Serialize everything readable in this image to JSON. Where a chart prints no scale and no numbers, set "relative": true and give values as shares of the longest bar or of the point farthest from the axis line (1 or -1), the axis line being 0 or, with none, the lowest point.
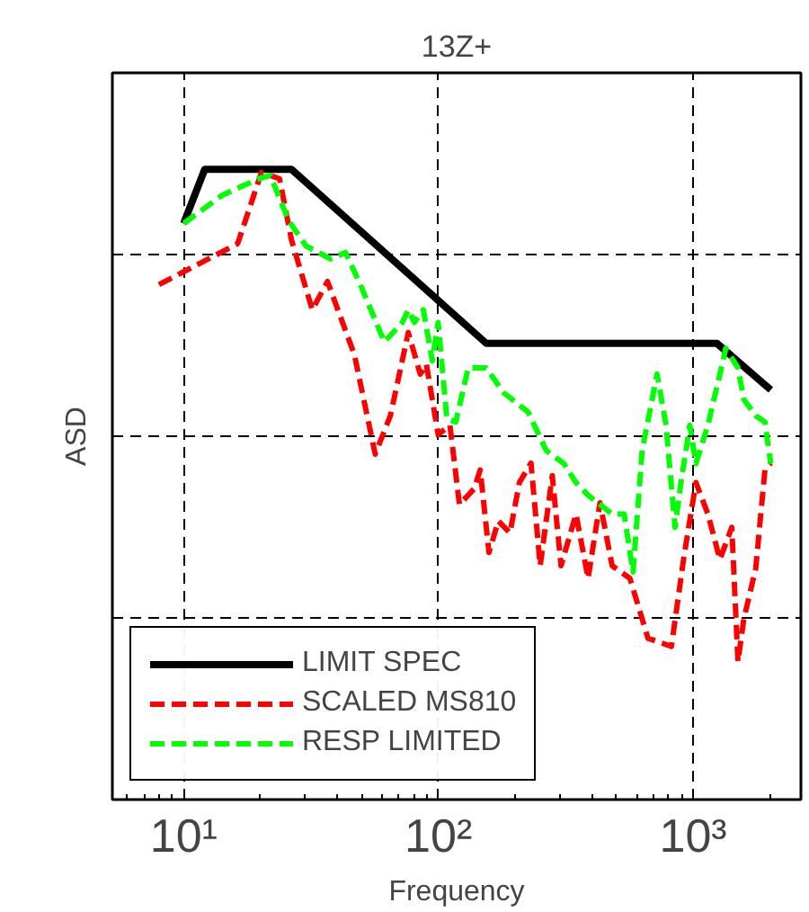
{
  "chart_data": {
    "type": "line",
    "title": "13Z+",
    "xlabel": "Frequency",
    "ylabel": "ASD",
    "relative": true,
    "log": "x",
    "grid": true,
    "legend": "bottom left",
    "xlim": [
      5.25,
      2650
    ],
    "xticks": [
      {
        "value": 10,
        "label": "10¹"
      },
      {
        "value": 100,
        "label": "10²"
      },
      {
        "value": 1000,
        "label": "10³"
      }
    ],
    "series": [
      {
        "name": "LIMIT SPEC",
        "color": "#000000",
        "line_style": "solid",
        "x": [
          10,
          12.1,
          26.5,
          154,
          1239,
          2018
        ],
        "values": [
          0.914,
          1.0,
          1.0,
          0.724,
          0.724,
          0.65
        ]
      },
      {
        "name": "SCALED MS810",
        "color": "#ff0000",
        "line_style": "dashed",
        "x": [
          8.0,
          16.3,
          20.2,
          23.8,
          26.5,
          32.0,
          36.7,
          46.8,
          56.5,
          64.8,
          76.2,
          84.9,
          89.7,
          99.8,
          111,
          121,
          138,
          146,
          158,
          172,
          191,
          208,
          231,
          251,
          280,
          303,
          347,
          387,
          431,
          481,
          565,
          665,
          822,
          921,
          1026,
          1143,
          1274,
          1419,
          1500,
          1581,
          1762,
          1914,
          2018
        ],
        "values": [
          0.817,
          0.882,
          0.995,
          0.985,
          0.888,
          0.777,
          0.822,
          0.706,
          0.548,
          0.609,
          0.741,
          0.675,
          0.691,
          0.579,
          0.594,
          0.468,
          0.493,
          0.523,
          0.392,
          0.442,
          0.423,
          0.503,
          0.534,
          0.371,
          0.514,
          0.371,
          0.453,
          0.351,
          0.471,
          0.371,
          0.351,
          0.256,
          0.243,
          0.386,
          0.503,
          0.453,
          0.381,
          0.432,
          0.219,
          0.286,
          0.367,
          0.523,
          0.534
        ]
      },
      {
        "name": "RESP LIMITED",
        "color": "#00ff00",
        "line_style": "dashed",
        "x": [
          10.0,
          14.2,
          19.7,
          21.9,
          25.8,
          30.3,
          37.7,
          43.2,
          49.4,
          61.4,
          72.2,
          76.2,
          80.5,
          87.3,
          94.7,
          99.8,
          108,
          117,
          131,
          154,
          181,
          225,
          265,
          311,
          347,
          387,
          481,
          536,
          581,
          631,
          722,
          783,
          849,
          896,
          971,
          1026,
          1143,
          1274,
          1343,
          1500,
          1581,
          1762,
          1914,
          2018
        ],
        "values": [
          0.914,
          0.959,
          0.985,
          0.99,
          0.919,
          0.878,
          0.858,
          0.868,
          0.817,
          0.726,
          0.757,
          0.777,
          0.757,
          0.777,
          0.696,
          0.757,
          0.604,
          0.599,
          0.685,
          0.685,
          0.645,
          0.615,
          0.554,
          0.533,
          0.503,
          0.483,
          0.453,
          0.453,
          0.361,
          0.554,
          0.675,
          0.594,
          0.432,
          0.503,
          0.594,
          0.533,
          0.594,
          0.675,
          0.716,
          0.685,
          0.635,
          0.609,
          0.599,
          0.533
        ]
      }
    ]
  }
}
